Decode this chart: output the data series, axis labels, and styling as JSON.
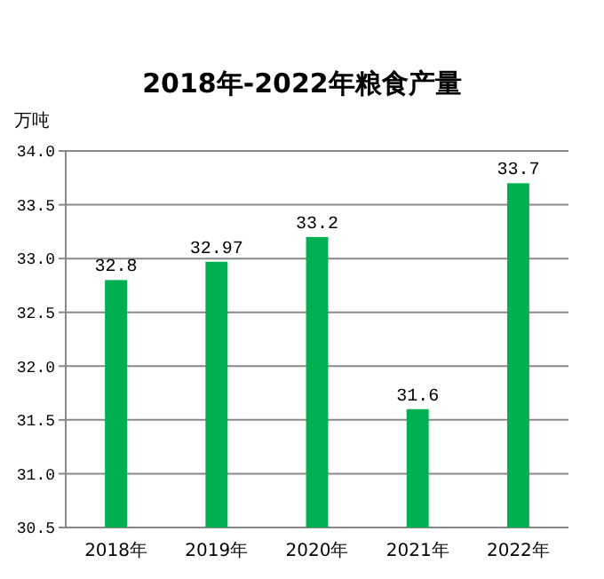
{
  "chart_data": {
    "type": "bar",
    "title": "2018年-2022年粮食产量",
    "ylabel": "万吨",
    "categories": [
      "2018年",
      "2019年",
      "2020年",
      "2021年",
      "2022年"
    ],
    "values": [
      32.8,
      32.97,
      33.2,
      31.6,
      33.7
    ],
    "color": "#00b050",
    "ylim": [
      30.5,
      34.0
    ],
    "yticks": [
      {
        "value": 30.5,
        "label": "30.5"
      },
      {
        "value": 31,
        "label": "31.0"
      },
      {
        "value": 31.5,
        "label": "31.5"
      },
      {
        "value": 32,
        "label": "32.0"
      },
      {
        "value": 32.5,
        "label": "32.5"
      },
      {
        "value": 33,
        "label": "33.0"
      },
      {
        "value": 33.5,
        "label": "33.5"
      },
      {
        "value": 34,
        "label": "34.0"
      }
    ],
    "grid": "y",
    "data_labels": true
  }
}
